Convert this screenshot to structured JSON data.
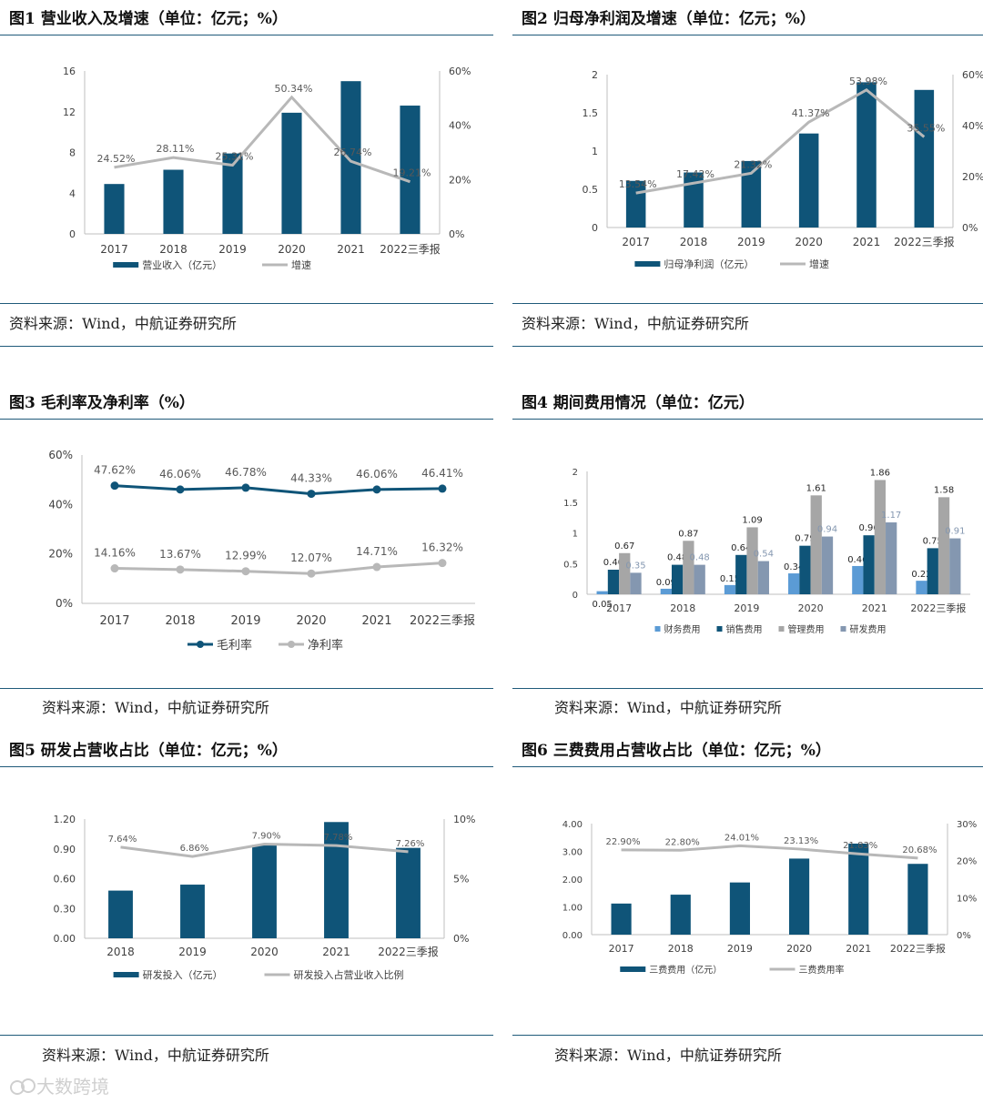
{
  "colors": {
    "bar": "#0f5478",
    "line": "#b8b8b8",
    "rule": "#1f5a7a",
    "fin": "#5b9bd5",
    "sales": "#0f5478",
    "admin": "#a6a6a6",
    "rd": "#8497b0"
  },
  "watermark": "大数跨境",
  "panels": [
    {
      "title": "图1 营业收入及增速（单位：亿元；%）",
      "source": "资料来源：Wind，中航证券研究所",
      "chart_data": {
        "type": "bar+line",
        "categories": [
          "2017",
          "2018",
          "2019",
          "2020",
          "2021",
          "2022三季报"
        ],
        "bar": {
          "name": "营业收入（亿元）",
          "values": [
            4.9,
            6.3,
            7.9,
            11.9,
            15.0,
            12.6
          ]
        },
        "line": {
          "name": "增速",
          "values": [
            24.52,
            28.11,
            25.31,
            50.34,
            26.74,
            19.21
          ],
          "labels": [
            "24.52%",
            "28.11%",
            "25.31%",
            "50.34%",
            "26.74%",
            "19.21%"
          ]
        },
        "yleft": {
          "min": 0,
          "max": 16,
          "ticks": [
            "0",
            "4",
            "8",
            "12",
            "16"
          ]
        },
        "yright": {
          "min": 0,
          "max": 60,
          "ticks": [
            "0%",
            "20%",
            "40%",
            "60%"
          ]
        }
      }
    },
    {
      "title": "图2 归母净利润及增速（单位：亿元；%）",
      "source": "资料来源：Wind，中航证券研究所",
      "chart_data": {
        "type": "bar+line",
        "categories": [
          "2017",
          "2018",
          "2019",
          "2020",
          "2021",
          "2022三季报"
        ],
        "bar": {
          "name": "归母净利润（亿元）",
          "values": [
            0.61,
            0.72,
            0.87,
            1.23,
            1.9,
            1.8
          ]
        },
        "line": {
          "name": "增速",
          "values": [
            13.54,
            17.42,
            21.32,
            41.37,
            53.98,
            35.55
          ],
          "labels": [
            "13.54%",
            "17.42%",
            "21.32%",
            "41.37%",
            "53.98%",
            "35.55%"
          ]
        },
        "yleft": {
          "min": 0,
          "max": 2,
          "ticks": [
            "0",
            "0.5",
            "1",
            "1.5",
            "2"
          ]
        },
        "yright": {
          "min": 0,
          "max": 60,
          "ticks": [
            "0%",
            "20%",
            "40%",
            "60%"
          ]
        }
      }
    },
    {
      "title": "图3 毛利率及净利率（%）",
      "source": "资料来源：Wind，中航证券研究所",
      "chart_data": {
        "type": "line",
        "categories": [
          "2017",
          "2018",
          "2019",
          "2020",
          "2021",
          "2022三季报"
        ],
        "series": [
          {
            "name": "毛利率",
            "values": [
              47.62,
              46.06,
              46.78,
              44.33,
              46.06,
              46.41
            ],
            "labels": [
              "47.62%",
              "46.06%",
              "46.78%",
              "44.33%",
              "46.06%",
              "46.41%"
            ]
          },
          {
            "name": "净利率",
            "values": [
              14.16,
              13.67,
              12.99,
              12.07,
              14.71,
              16.32
            ],
            "labels": [
              "14.16%",
              "13.67%",
              "12.99%",
              "12.07%",
              "14.71%",
              "16.32%"
            ]
          }
        ],
        "yleft": {
          "min": 0,
          "max": 60,
          "ticks": [
            "0%",
            "20%",
            "40%",
            "60%"
          ]
        }
      }
    },
    {
      "title": "图4 期间费用情况（单位：亿元）",
      "source": "资料来源：Wind，中航证券研究所",
      "chart_data": {
        "type": "bar",
        "categories": [
          "2017",
          "2018",
          "2019",
          "2020",
          "2021",
          "2022三季报"
        ],
        "series": [
          {
            "name": "财务费用",
            "values": [
              0.05,
              0.09,
              0.15,
              0.34,
              0.46,
              0.22
            ],
            "labels": [
              "0.05",
              "0.09",
              "0.15",
              "0.34",
              "0.46",
              "0.22"
            ]
          },
          {
            "name": "销售费用",
            "values": [
              0.4,
              0.48,
              0.64,
              0.79,
              0.96,
              0.75
            ],
            "labels": [
              "0.40",
              "0.48",
              "0.64",
              "0.79",
              "0.96",
              "0.75"
            ]
          },
          {
            "name": "管理费用",
            "values": [
              0.67,
              0.87,
              1.09,
              1.61,
              1.86,
              1.58
            ],
            "labels": [
              "0.67",
              "0.87",
              "1.09",
              "1.61",
              "1.86",
              "1.58"
            ]
          },
          {
            "name": "研发费用",
            "values": [
              0.35,
              0.48,
              0.54,
              0.94,
              1.17,
              0.91
            ],
            "labels": [
              "0.35",
              "0.48",
              "0.54",
              "0.94",
              "1.17",
              "0.91"
            ]
          }
        ],
        "yleft": {
          "min": 0,
          "max": 2,
          "ticks": [
            "0",
            "0.5",
            "1",
            "1.5",
            "2"
          ]
        }
      }
    },
    {
      "title": "图5 研发占营收占比（单位：亿元；%）",
      "source": "资料来源：Wind，中航证券研究所",
      "chart_data": {
        "type": "bar+line",
        "categories": [
          "2018",
          "2019",
          "2020",
          "2021",
          "2022三季报"
        ],
        "bar": {
          "name": "研发投入（亿元）",
          "values": [
            0.48,
            0.54,
            0.94,
            1.17,
            0.91
          ]
        },
        "line": {
          "name": "研发投入占营业收入比例",
          "values": [
            7.64,
            6.86,
            7.9,
            7.78,
            7.26
          ],
          "labels": [
            "7.64%",
            "6.86%",
            "7.90%",
            "7.78%",
            "7.26%"
          ]
        },
        "yleft": {
          "min": 0,
          "max": 1.2,
          "ticks": [
            "0.00",
            "0.30",
            "0.60",
            "0.90",
            "1.20"
          ]
        },
        "yright": {
          "min": 0,
          "max": 10,
          "ticks": [
            "0%",
            "5%",
            "10%"
          ]
        }
      }
    },
    {
      "title": "图6 三费费用占营收占比（单位：亿元；%）",
      "source": "资料来源：Wind，中航证券研究所",
      "chart_data": {
        "type": "bar+line",
        "categories": [
          "2017",
          "2018",
          "2019",
          "2020",
          "2021",
          "2022三季报"
        ],
        "bar": {
          "name": "三费费用（亿元）",
          "values": [
            1.12,
            1.44,
            1.88,
            2.74,
            3.28,
            2.55
          ]
        },
        "line": {
          "name": "三费费用率",
          "values": [
            22.9,
            22.8,
            24.01,
            23.13,
            21.83,
            20.68
          ],
          "labels": [
            "22.90%",
            "22.80%",
            "24.01%",
            "23.13%",
            "21.83%",
            "20.68%"
          ]
        },
        "yleft": {
          "min": 0,
          "max": 4,
          "ticks": [
            "0.00",
            "1.00",
            "2.00",
            "3.00",
            "4.00"
          ]
        },
        "yright": {
          "min": 0,
          "max": 30,
          "ticks": [
            "0%",
            "10%",
            "20%",
            "30%"
          ]
        }
      }
    }
  ]
}
